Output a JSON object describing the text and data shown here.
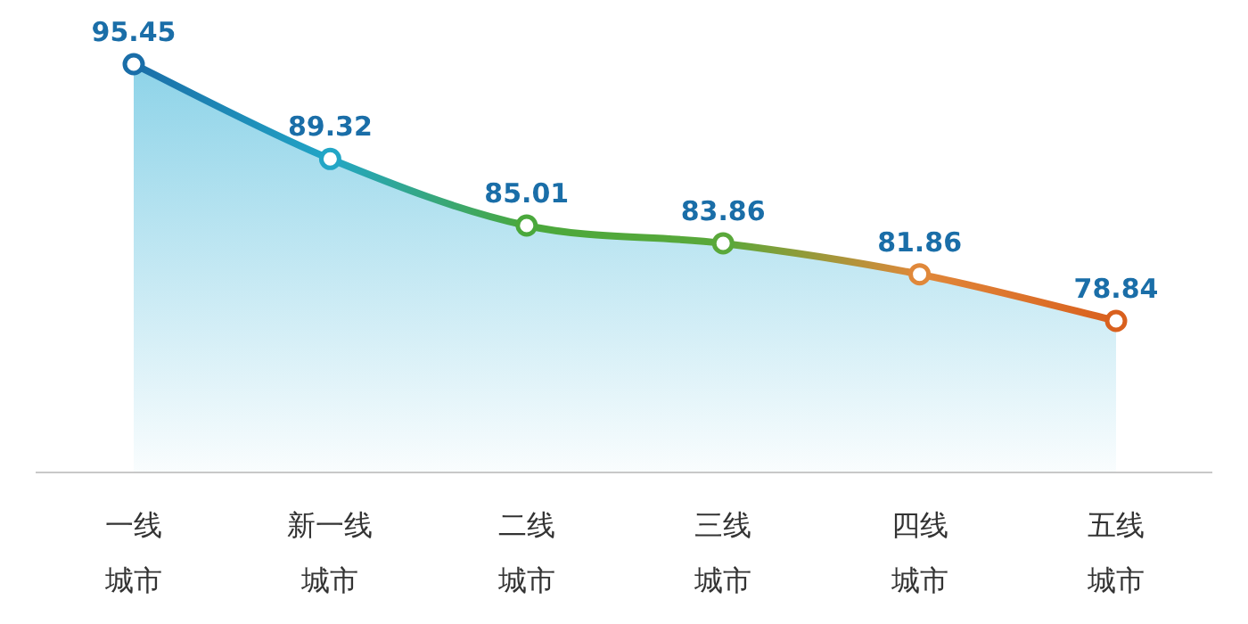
{
  "chart_data": {
    "type": "area",
    "categories": [
      "一线城市",
      "新一线城市",
      "二线城市",
      "三线城市",
      "四线城市",
      "五线城市"
    ],
    "values": [
      95.45,
      89.32,
      85.01,
      83.86,
      81.86,
      78.84
    ],
    "color": "#8dd3e8",
    "colors": [
      "#1a6ea8",
      "#22a6c6",
      "#4aa83c",
      "#5aa83a",
      "#e0883a",
      "#d9601e"
    ],
    "data_labels": true,
    "marker": "circle"
  }
}
